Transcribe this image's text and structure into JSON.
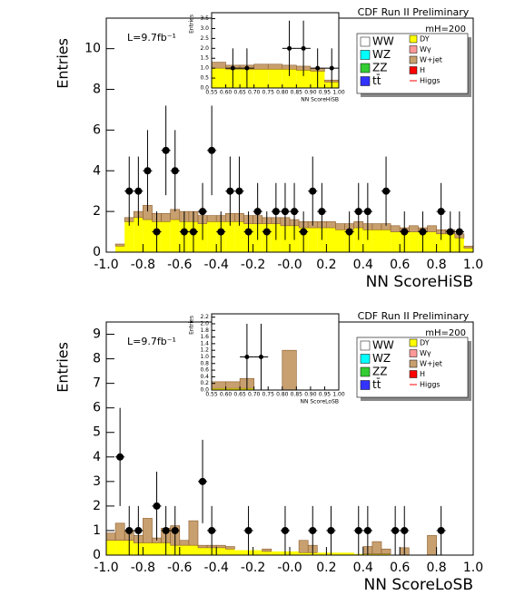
{
  "chart_data": [
    {
      "type": "histogram",
      "title": "CDF Run II Preliminary",
      "annotations": [
        "L=9.7fb⁻¹",
        "mH=200"
      ],
      "xlabel": "NN ScoreHiSB",
      "ylabel": "Entries",
      "bins": [
        -1.0,
        -0.95,
        -0.9,
        -0.85,
        -0.8,
        -0.75,
        -0.7,
        -0.65,
        -0.6,
        -0.55,
        -0.5,
        -0.45,
        -0.4,
        -0.35,
        -0.3,
        -0.25,
        -0.2,
        -0.15,
        -0.1,
        -0.05,
        0.0,
        0.05,
        0.1,
        0.15,
        0.2,
        0.25,
        0.3,
        0.35,
        0.4,
        0.45,
        0.5,
        0.55,
        0.6,
        0.65,
        0.7,
        0.75,
        0.8,
        0.85,
        0.9,
        0.95,
        1.0
      ],
      "series": [
        {
          "name": "DY",
          "color": "#ffff00",
          "values": [
            0,
            0.3,
            1.5,
            1.7,
            1.6,
            1.5,
            1.5,
            1.6,
            1.5,
            1.5,
            1.4,
            1.5,
            1.5,
            1.5,
            1.5,
            1.4,
            1.4,
            1.4,
            1.4,
            1.3,
            1.3,
            1.2,
            1.2,
            1.2,
            1.2,
            1.1,
            1.1,
            1.2,
            1.1,
            1.1,
            1.1,
            1.0,
            1.0,
            1.0,
            1.0,
            1.0,
            0.9,
            0.9,
            0.7,
            0.2
          ]
        },
        {
          "name": "W+jet",
          "color": "#c8a070",
          "values": [
            0,
            0.1,
            0.2,
            0.3,
            0.7,
            0.4,
            0.4,
            0.5,
            0.5,
            0.5,
            0.4,
            0.3,
            0.3,
            0.4,
            0.4,
            0.4,
            0.4,
            0.3,
            0.3,
            0.4,
            0.3,
            0.3,
            0.3,
            0.3,
            0.3,
            0.3,
            0.3,
            0.3,
            0.3,
            0.3,
            0.3,
            0.3,
            0.2,
            0.3,
            0.2,
            0.3,
            0.2,
            0.2,
            0.2,
            0.1
          ]
        }
      ],
      "points": {
        "x": [
          -0.875,
          -0.825,
          -0.775,
          -0.725,
          -0.675,
          -0.625,
          -0.575,
          -0.525,
          -0.475,
          -0.425,
          -0.375,
          -0.325,
          -0.275,
          -0.225,
          -0.175,
          -0.125,
          -0.075,
          -0.025,
          0.025,
          0.075,
          0.125,
          0.175,
          0.325,
          0.375,
          0.425,
          0.525,
          0.625,
          0.725,
          0.825,
          0.875,
          0.925
        ],
        "values": [
          3,
          3,
          4,
          1,
          5,
          4,
          1,
          1,
          2,
          5,
          1,
          3,
          3,
          1,
          2,
          1,
          2,
          2,
          2,
          1,
          3,
          2,
          1,
          2,
          2,
          3,
          1,
          1,
          2,
          1,
          1
        ],
        "errors": [
          1.7,
          1.7,
          2,
          1,
          2.2,
          2,
          1,
          1,
          1.4,
          2.2,
          1,
          1.7,
          1.7,
          1,
          1.4,
          1,
          1.4,
          1.4,
          1.4,
          1,
          1.7,
          1.4,
          1,
          1.4,
          1.4,
          1.7,
          1,
          1,
          1.4,
          1,
          1
        ]
      },
      "xlim": [
        -1.0,
        1.0
      ],
      "ylim": [
        0,
        11.5
      ],
      "xticks": [
        {
          "value": -1.0,
          "label": "-1.0"
        },
        -0.8,
        -0.6,
        -0.4,
        -0.2,
        {
          "value": 0,
          "label": "-0.0"
        },
        0.2,
        0.4,
        0.6,
        0.8,
        {
          "value": 1.0,
          "label": "1.0"
        }
      ],
      "yticks": [
        0,
        2,
        4,
        6,
        8,
        10
      ],
      "legend": [
        {
          "name": "WW",
          "color": "#ffffff"
        },
        {
          "name": "WZ",
          "color": "#00ffff"
        },
        {
          "name": "ZZ",
          "color": "#33cc33"
        },
        {
          "name": "tt̄",
          "color": "#3333ff"
        },
        {
          "name": "DY",
          "color": "#ffff00"
        },
        {
          "name": "Wγ",
          "color": "#ff9999"
        },
        {
          "name": "W+jet",
          "color": "#c8a070"
        },
        {
          "name": "H",
          "color": "#ff0000"
        },
        {
          "name": "Higgs",
          "color": "#ff0000"
        }
      ]
    },
    {
      "type": "histogram",
      "xlabel": "NN ScoreHiSB",
      "ylabel": "Entries",
      "bins": [
        0.55,
        0.6,
        0.65,
        0.7,
        0.75,
        0.8,
        0.85,
        0.9,
        0.95,
        1.0
      ],
      "series": [
        {
          "name": "DY",
          "color": "#ffff00",
          "values": [
            1.0,
            0.95,
            0.95,
            0.95,
            0.95,
            0.95,
            0.9,
            0.85,
            0.3
          ]
        },
        {
          "name": "W+jet",
          "color": "#c8a070",
          "values": [
            0.3,
            0.2,
            0.2,
            0.25,
            0.25,
            0.2,
            0.2,
            0.15,
            0.1
          ]
        }
      ],
      "points": {
        "x": [
          0.625,
          0.675,
          0.825,
          0.875,
          0.925,
          0.975
        ],
        "values": [
          1,
          1,
          2,
          2,
          1,
          1
        ],
        "errors": [
          1,
          1,
          1.4,
          1.4,
          1,
          1
        ]
      },
      "xlim": [
        0.55,
        1.0
      ],
      "ylim": [
        0,
        3.8
      ],
      "xticks": [
        0.55,
        {
          "value": 0.6,
          "label": "0.60"
        },
        0.65,
        {
          "value": 0.7,
          "label": "0.70"
        },
        0.75,
        {
          "value": 0.8,
          "label": "0.80"
        },
        0.85,
        {
          "value": 0.9,
          "label": "0.90"
        },
        0.95,
        {
          "value": 1.0,
          "label": "1.00"
        }
      ],
      "yticks": [
        {
          "value": 0,
          "label": "0.0"
        },
        0.5,
        {
          "value": 1,
          "label": "1.0"
        },
        1.5,
        {
          "value": 2,
          "label": "2.0"
        },
        2.5,
        {
          "value": 3,
          "label": "3.0"
        },
        3.5
      ]
    },
    {
      "type": "histogram",
      "title": "CDF Run II Preliminary",
      "annotations": [
        "L=9.7fb⁻¹",
        "mH=200"
      ],
      "xlabel": "NN ScoreLoSB",
      "ylabel": "Entries",
      "bins": [
        -1.0,
        -0.95,
        -0.9,
        -0.85,
        -0.8,
        -0.75,
        -0.7,
        -0.65,
        -0.6,
        -0.55,
        -0.5,
        -0.45,
        -0.4,
        -0.35,
        -0.3,
        -0.25,
        -0.2,
        -0.15,
        -0.1,
        -0.05,
        0.0,
        0.05,
        0.1,
        0.15,
        0.2,
        0.25,
        0.3,
        0.35,
        0.4,
        0.45,
        0.5,
        0.55,
        0.6,
        0.65,
        0.7,
        0.75,
        0.8,
        0.85,
        0.9,
        0.95,
        1.0
      ],
      "series": [
        {
          "name": "DY",
          "color": "#ffff00",
          "values": [
            0.6,
            0.6,
            0.6,
            0.5,
            0.5,
            0.5,
            0.5,
            0.4,
            0.4,
            0.4,
            0.3,
            0.3,
            0.3,
            0.25,
            0.2,
            0.2,
            0.2,
            0.15,
            0.15,
            0.15,
            0.15,
            0.1,
            0.1,
            0.1,
            0.1,
            0.1,
            0.1,
            0.05,
            0.05,
            0.05,
            0.05,
            0,
            0,
            0,
            0,
            0,
            0,
            0,
            0,
            0
          ]
        },
        {
          "name": "W+jet",
          "color": "#c8a070",
          "values": [
            0.3,
            0.7,
            0.4,
            0.3,
            1.0,
            0.2,
            0.6,
            0.8,
            0.2,
            1.0,
            0.1,
            0.1,
            0.1,
            0.1,
            0,
            0,
            0,
            0.1,
            0,
            0,
            0,
            0.5,
            0.3,
            0,
            0,
            0,
            0,
            0,
            0.3,
            0.5,
            0.2,
            0,
            0.3,
            0,
            0,
            0.8,
            0,
            0,
            0,
            0
          ]
        }
      ],
      "points": {
        "x": [
          -0.925,
          -0.875,
          -0.825,
          -0.725,
          -0.675,
          -0.625,
          -0.475,
          -0.425,
          -0.225,
          -0.025,
          0.125,
          0.225,
          0.375,
          0.425,
          0.575,
          0.625,
          0.825
        ],
        "values": [
          4,
          1,
          1,
          2,
          1,
          1,
          3,
          1,
          1,
          1,
          1,
          1,
          1,
          1,
          1,
          1,
          1
        ],
        "errors": [
          2,
          1,
          1,
          1.4,
          1,
          1,
          1.7,
          1,
          1,
          1,
          1,
          1,
          1,
          1,
          1,
          1,
          1
        ]
      },
      "xlim": [
        -1.0,
        1.0
      ],
      "ylim": [
        0,
        9.5
      ],
      "xticks": [
        {
          "value": -1.0,
          "label": "-1.0"
        },
        -0.8,
        -0.6,
        -0.4,
        -0.2,
        {
          "value": 0,
          "label": "-0.0"
        },
        0.2,
        0.4,
        0.6,
        0.8,
        {
          "value": 1.0,
          "label": "1.0"
        }
      ],
      "yticks": [
        0,
        1,
        2,
        3,
        4,
        5,
        6,
        7,
        8,
        9
      ],
      "legend": [
        {
          "name": "WW",
          "color": "#ffffff"
        },
        {
          "name": "WZ",
          "color": "#00ffff"
        },
        {
          "name": "ZZ",
          "color": "#33cc33"
        },
        {
          "name": "tt̄",
          "color": "#3333ff"
        },
        {
          "name": "DY",
          "color": "#ffff00"
        },
        {
          "name": "Wγ",
          "color": "#ff9999"
        },
        {
          "name": "W+jet",
          "color": "#c8a070"
        },
        {
          "name": "H",
          "color": "#ff0000"
        },
        {
          "name": "Higgs",
          "color": "#ff0000"
        }
      ]
    },
    {
      "type": "histogram",
      "xlabel": "NN ScoreLoSB",
      "ylabel": "Entries",
      "bins": [
        0.55,
        0.6,
        0.65,
        0.7,
        0.75,
        0.8,
        0.85,
        0.9,
        0.95,
        1.0
      ],
      "series": [
        {
          "name": "DY",
          "color": "#ffff00",
          "values": [
            0.05,
            0.05,
            0.05,
            0,
            0,
            0,
            0,
            0,
            0
          ]
        },
        {
          "name": "W+jet",
          "color": "#c8a070",
          "values": [
            0.2,
            0.2,
            0.3,
            0,
            0,
            1.2,
            0,
            0,
            0
          ]
        }
      ],
      "points": {
        "x": [
          0.675,
          0.725
        ],
        "values": [
          1,
          1
        ],
        "errors": [
          1,
          1
        ]
      },
      "xlim": [
        0.55,
        1.0
      ],
      "ylim": [
        0,
        2.3
      ],
      "xticks": [
        0.55,
        {
          "value": 0.6,
          "label": "0.60"
        },
        0.65,
        {
          "value": 0.7,
          "label": "0.70"
        },
        0.75,
        {
          "value": 0.8,
          "label": "0.80"
        },
        0.85,
        {
          "value": 0.9,
          "label": "0.90"
        },
        0.95,
        {
          "value": 1.0,
          "label": "1.00"
        }
      ],
      "yticks": [
        {
          "value": 0,
          "label": "0.0"
        },
        0.2,
        0.4,
        0.6,
        0.8,
        {
          "value": 1,
          "label": "1.0"
        },
        1.2,
        1.4,
        1.6,
        1.8,
        {
          "value": 2,
          "label": "2.0"
        },
        2.2
      ]
    }
  ]
}
